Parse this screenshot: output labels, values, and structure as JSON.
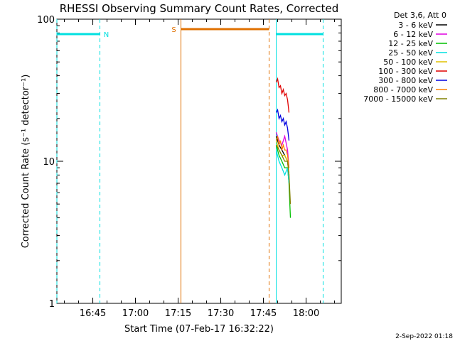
{
  "chart_data": {
    "type": "line",
    "title": "RHESSI Observing Summary Count Rates, Corrected",
    "xlabel": "Start Time (07-Feb-17 16:32:22)",
    "ylabel": "Corrected Count Rate (s⁻¹ detector⁻¹)",
    "x_ticks": [
      "16:45",
      "17:00",
      "17:15",
      "17:30",
      "17:45",
      "18:00"
    ],
    "y_ticks": [
      "1",
      "10",
      "100"
    ],
    "y_scale": "log",
    "ylim": [
      1,
      100
    ],
    "xlim": [
      "16:32:22",
      "18:12:22"
    ],
    "grid": false,
    "legend_position": "top-right",
    "legend_title": "Det 3,6, Att 0",
    "series": [
      {
        "name": "3 - 6 keV",
        "color": "#000000",
        "x": [
          "17:49:30",
          "17:50:30",
          "17:51:30",
          "17:52:30",
          "17:53:30",
          "17:54:00"
        ],
        "values": [
          15,
          13,
          12,
          11,
          10,
          8
        ]
      },
      {
        "name": "6 - 12 keV",
        "color": "#e000e0",
        "x": [
          "17:49:30",
          "17:50:30",
          "17:51:30",
          "17:52:30",
          "17:53:30",
          "17:54:00"
        ],
        "values": [
          16,
          14,
          13,
          15,
          12,
          9
        ]
      },
      {
        "name": "12 - 25 keV",
        "color": "#00c000",
        "x": [
          "17:49:30",
          "17:50:30",
          "17:51:30",
          "17:52:30",
          "17:53:30",
          "17:54:00",
          "17:54:30"
        ],
        "values": [
          13,
          11,
          10,
          9,
          9,
          7,
          4
        ]
      },
      {
        "name": "25 - 50 keV",
        "color": "#00e0e0",
        "x": [
          "17:49:30",
          "17:50:30",
          "17:51:30",
          "17:52:30",
          "17:53:30",
          "17:54:00"
        ],
        "values": [
          12,
          10,
          9,
          8,
          9,
          7
        ]
      },
      {
        "name": "50 - 100 keV",
        "color": "#e0c000",
        "x": [
          "17:49:30",
          "17:50:30",
          "17:51:30",
          "17:52:30",
          "17:53:30",
          "17:54:00"
        ],
        "values": [
          14,
          12,
          11,
          11,
          10,
          8
        ]
      },
      {
        "name": "100 - 300 keV",
        "color": "#e00000",
        "x": [
          "17:49:30",
          "17:50:00",
          "17:50:30",
          "17:51:00",
          "17:51:30",
          "17:52:00",
          "17:52:30",
          "17:53:00",
          "17:53:30",
          "17:54:00"
        ],
        "values": [
          36,
          38,
          33,
          34,
          30,
          32,
          29,
          30,
          27,
          22
        ]
      },
      {
        "name": "300 - 800 keV",
        "color": "#0000e0",
        "x": [
          "17:49:30",
          "17:50:00",
          "17:50:30",
          "17:51:00",
          "17:51:30",
          "17:52:00",
          "17:52:30",
          "17:53:00",
          "17:53:30",
          "17:54:00"
        ],
        "values": [
          22,
          23,
          20,
          21,
          19,
          20,
          18,
          19,
          17,
          14
        ]
      },
      {
        "name": "800 - 7000 keV",
        "color": "#ff7f00",
        "x": [
          "17:49:30",
          "17:50:00",
          "17:50:30",
          "17:51:00",
          "17:51:30",
          "17:52:00",
          "17:52:30",
          "17:53:00",
          "17:53:30",
          "17:54:00"
        ],
        "values": [
          14,
          15,
          13,
          14,
          12,
          13,
          12,
          12,
          11,
          9
        ]
      },
      {
        "name": "7000 - 15000 keV",
        "color": "#808000",
        "x": [
          "17:49:30",
          "17:50:30",
          "17:51:30",
          "17:52:30",
          "17:53:30",
          "17:54:00",
          "17:54:30"
        ],
        "values": [
          13,
          12,
          11,
          10,
          10,
          8,
          5
        ]
      }
    ],
    "annotations": [
      {
        "label": "N",
        "color": "#00e0e0",
        "times": [
          "16:32:22",
          "16:47:30"
        ],
        "linestyle": "dashed"
      },
      {
        "label": "S",
        "color": "#e07000",
        "times": [
          "17:16:00",
          "17:47:00"
        ],
        "linestyle": "solid-start-dashed-end"
      },
      {
        "label": "",
        "color": "#00e0e0",
        "times": [
          "17:49:30",
          "18:06:00"
        ],
        "linestyle": "solid-start-dashed-end"
      }
    ]
  },
  "footer": {
    "timestamp": "2-Sep-2022 01:18"
  }
}
